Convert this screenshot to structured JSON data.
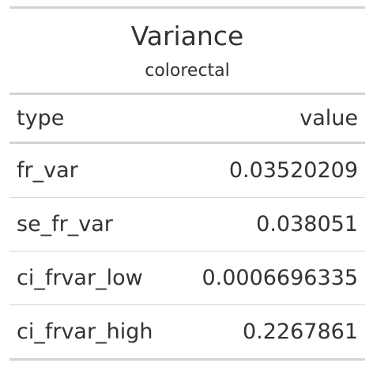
{
  "table": {
    "title": "Variance",
    "subtitle": "colorectal",
    "columns": [
      "type",
      "value"
    ],
    "rows": [
      {
        "type": "fr_var",
        "value": "0.03520209"
      },
      {
        "type": "se_fr_var",
        "value": "0.038051"
      },
      {
        "type": "ci_frvar_low",
        "value": "0.0006696335"
      },
      {
        "type": "ci_frvar_high",
        "value": "0.2267861"
      }
    ]
  },
  "colors": {
    "text": "#333333",
    "rule": "#d3d3d3",
    "background": "#ffffff"
  }
}
